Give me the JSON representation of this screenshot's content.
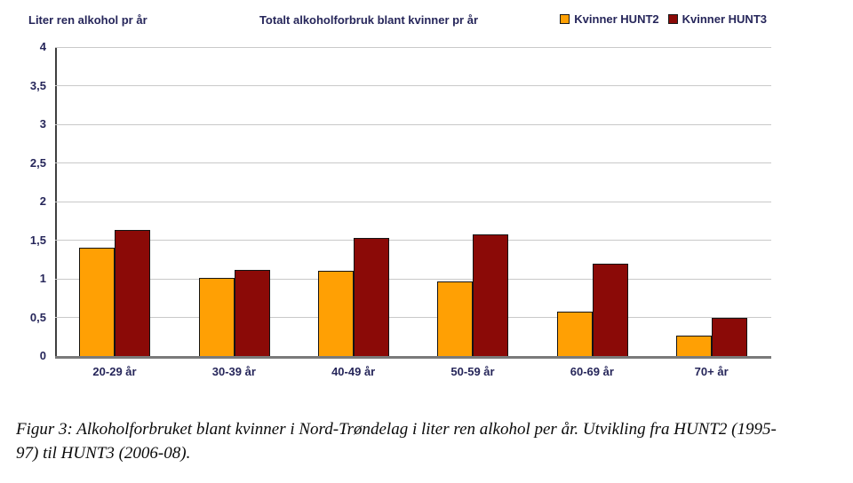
{
  "header": {
    "y_axis_title": "Liter ren alkohol pr år",
    "chart_title": "Totalt alkoholforbruk blant kvinner pr år"
  },
  "legend": [
    {
      "label": "Kvinner HUNT2",
      "color": "#FFA004"
    },
    {
      "label": "Kvinner HUNT3",
      "color": "#8B0A07"
    }
  ],
  "chart_data": {
    "type": "bar",
    "title": "Totalt alkoholforbruk blant kvinner pr år",
    "xlabel": "",
    "ylabel": "Liter ren alkohol pr år",
    "categories": [
      "20-29 år",
      "30-39 år",
      "40-49 år",
      "50-59 år",
      "60-69 år",
      "70+ år"
    ],
    "series": [
      {
        "name": "Kvinner HUNT2",
        "color": "#FFA004",
        "values": [
          1.4,
          1.01,
          1.1,
          0.97,
          0.57,
          0.27
        ]
      },
      {
        "name": "Kvinner HUNT3",
        "color": "#8B0A07",
        "values": [
          1.63,
          1.11,
          1.53,
          1.58,
          1.2,
          0.5
        ]
      }
    ],
    "ylim": [
      0,
      4
    ],
    "ytick_step": 0.5,
    "ytick_labels": [
      "0",
      "0,5",
      "1",
      "1,5",
      "2",
      "2,5",
      "3",
      "3,5",
      "4"
    ],
    "grid": true,
    "legend_position": "top-right"
  },
  "caption": {
    "lines": [
      "Figur 3: Alkoholforbruket blant kvinner i Nord-Trøndelag i liter ren alkohol per år. Utvikling fra HUNT2 (1995-",
      "97) til HUNT3 (2006-08)."
    ]
  }
}
